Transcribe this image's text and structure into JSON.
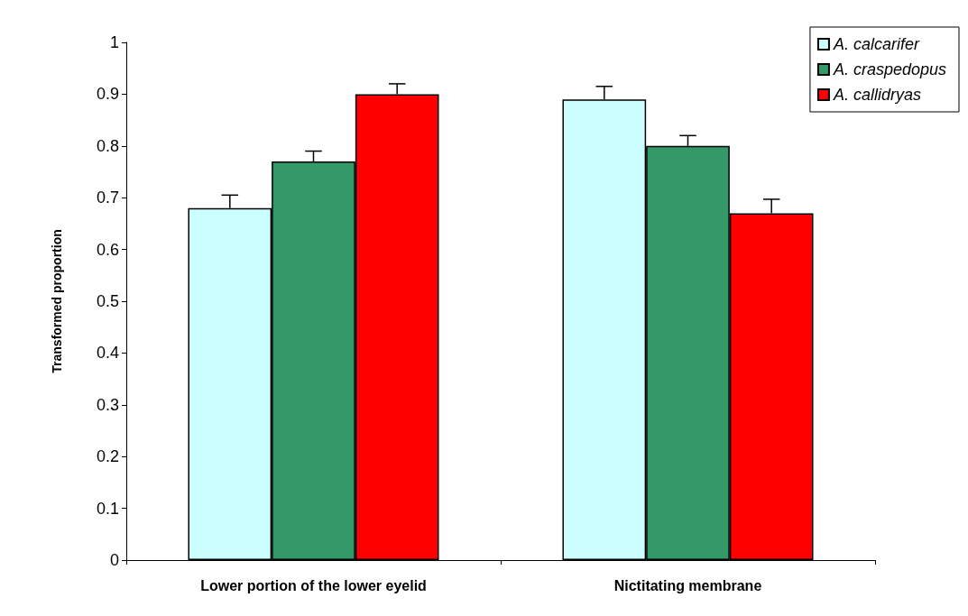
{
  "chart_data": {
    "type": "bar",
    "ylabel": "Transformed proportion",
    "categories": [
      "Lower portion of the lower eyelid",
      "Nictitating membrane"
    ],
    "series": [
      {
        "name": "A. calcarifer",
        "color": "#ccffff",
        "values": [
          0.68,
          0.89
        ],
        "errors": [
          [
            0.68,
            0.705
          ],
          [
            0.89,
            0.915
          ]
        ]
      },
      {
        "name": "A. craspedopus",
        "color": "#339966",
        "values": [
          0.77,
          0.8
        ],
        "errors": [
          [
            0.77,
            0.79
          ],
          [
            0.8,
            0.82
          ]
        ]
      },
      {
        "name": "A. callidryas",
        "color": "#ff0000",
        "values": [
          0.9,
          0.67
        ],
        "errors": [
          [
            0.9,
            0.92
          ],
          [
            0.67,
            0.697
          ]
        ]
      }
    ],
    "ylim": [
      0,
      1
    ],
    "yticks": [
      0,
      0.1,
      0.2,
      0.3,
      0.4,
      0.5,
      0.6,
      0.7,
      0.8,
      0.9,
      1
    ],
    "grid": false,
    "legend": "top right"
  }
}
